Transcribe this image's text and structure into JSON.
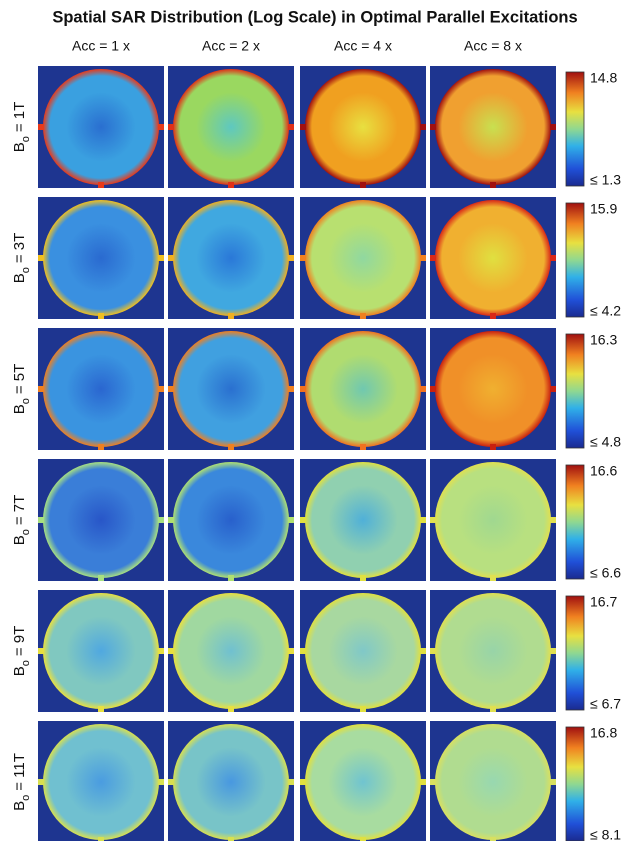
{
  "title": "Spatial SAR Distribution (Log Scale) in Optimal Parallel Excitations",
  "columns": [
    "Acc = 1 x",
    "Acc = 2 x",
    "Acc = 4 x",
    "Acc = 8 x"
  ],
  "rows": [
    {
      "symbol": "B",
      "subscript": "o",
      "field": "= 1T",
      "colorbar_max": "14.8",
      "colorbar_min": "≤ 1.3"
    },
    {
      "symbol": "B",
      "subscript": "o",
      "field": "= 3T",
      "colorbar_max": "15.9",
      "colorbar_min": "≤ 4.2"
    },
    {
      "symbol": "B",
      "subscript": "o",
      "field": "= 5T",
      "colorbar_max": "16.3",
      "colorbar_min": "≤ 4.8"
    },
    {
      "symbol": "B",
      "subscript": "o",
      "field": "= 7T",
      "colorbar_max": "16.6",
      "colorbar_min": "≤ 6.6"
    },
    {
      "symbol": "B",
      "subscript": "o",
      "field": "= 9T",
      "colorbar_max": "16.7",
      "colorbar_min": "≤ 6.7"
    },
    {
      "symbol": "B",
      "subscript": "o",
      "field": "= 11T",
      "colorbar_max": "16.8",
      "colorbar_min": "≤ 8.1"
    }
  ]
}
